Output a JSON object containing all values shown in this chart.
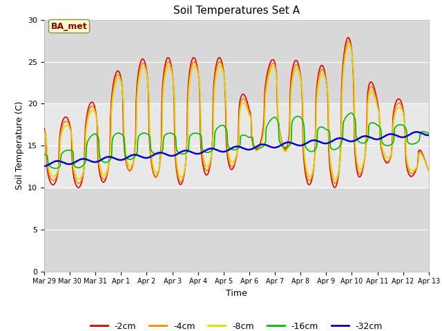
{
  "title": "Soil Temperatures Set A",
  "xlabel": "Time",
  "ylabel": "Soil Temperature (C)",
  "ylim": [
    0,
    30
  ],
  "xlim_days": [
    0,
    15
  ],
  "annotation": "BA_met",
  "plot_bg_dark": "#d8d8d8",
  "plot_bg_light": "#e8e8e8",
  "fig_bg": "#f0f0f0",
  "series": {
    "-2cm": {
      "color": "#dd0000",
      "lw": 1.2
    },
    "-4cm": {
      "color": "#ff8800",
      "lw": 1.2
    },
    "-8cm": {
      "color": "#dddd00",
      "lw": 1.2
    },
    "-16cm": {
      "color": "#00bb00",
      "lw": 1.2
    },
    "-32cm": {
      "color": "#0000cc",
      "lw": 1.8
    }
  },
  "xtick_labels": [
    "Mar 29",
    "Mar 30",
    "Mar 31",
    "Apr 1",
    "Apr 2",
    "Apr 3",
    "Apr 4",
    "Apr 5",
    "Apr 6",
    "Apr 7",
    "Apr 8",
    "Apr 9",
    "Apr 10",
    "Apr 11",
    "Apr 12",
    "Apr 13"
  ],
  "xtick_positions": [
    0,
    1,
    2,
    3,
    4,
    5,
    6,
    7,
    8,
    9,
    10,
    11,
    12,
    13,
    14,
    15
  ],
  "ytick_positions": [
    0,
    5,
    10,
    15,
    20,
    25,
    30
  ],
  "legend_order": [
    "-2cm",
    "-4cm",
    "-8cm",
    "-16cm",
    "-32cm"
  ],
  "day_peaks_2cm": [
    18.0,
    18.5,
    20.5,
    24.5,
    25.5,
    25.5,
    25.5,
    25.5,
    20.0,
    26.0,
    25.0,
    24.5,
    28.5,
    21.0,
    20.5,
    12.0
  ],
  "day_mins_2cm": [
    10.5,
    10.0,
    10.0,
    12.0,
    12.0,
    9.8,
    11.5,
    11.5,
    13.5,
    17.0,
    10.5,
    10.0,
    10.0,
    14.0,
    11.0,
    12.0
  ],
  "day_peaks_4cm": [
    17.5,
    18.0,
    20.0,
    24.0,
    25.0,
    25.0,
    25.0,
    25.0,
    19.5,
    25.5,
    24.5,
    24.0,
    28.0,
    20.5,
    20.0,
    12.0
  ],
  "day_mins_4cm": [
    11.0,
    10.5,
    10.5,
    12.0,
    12.0,
    10.0,
    12.0,
    12.0,
    13.5,
    16.5,
    11.0,
    10.5,
    10.5,
    14.0,
    11.5,
    12.0
  ],
  "day_peaks_8cm": [
    17.0,
    17.5,
    19.5,
    23.5,
    24.5,
    24.5,
    24.5,
    24.5,
    19.0,
    25.0,
    24.0,
    23.5,
    27.5,
    20.0,
    19.5,
    12.0
  ],
  "day_mins_8cm": [
    11.5,
    11.0,
    11.0,
    12.5,
    12.5,
    10.5,
    12.5,
    12.5,
    14.0,
    16.0,
    11.5,
    11.0,
    11.0,
    14.5,
    12.0,
    12.0
  ],
  "day_peaks_16cm": [
    14.0,
    14.5,
    16.5,
    16.5,
    16.5,
    16.5,
    16.5,
    17.5,
    16.0,
    18.5,
    18.5,
    17.0,
    19.0,
    17.5,
    17.5,
    16.5
  ],
  "day_mins_16cm": [
    12.5,
    12.0,
    13.0,
    13.0,
    14.0,
    14.0,
    14.0,
    14.5,
    14.5,
    15.0,
    14.5,
    14.0,
    15.5,
    15.0,
    15.0,
    15.5
  ]
}
